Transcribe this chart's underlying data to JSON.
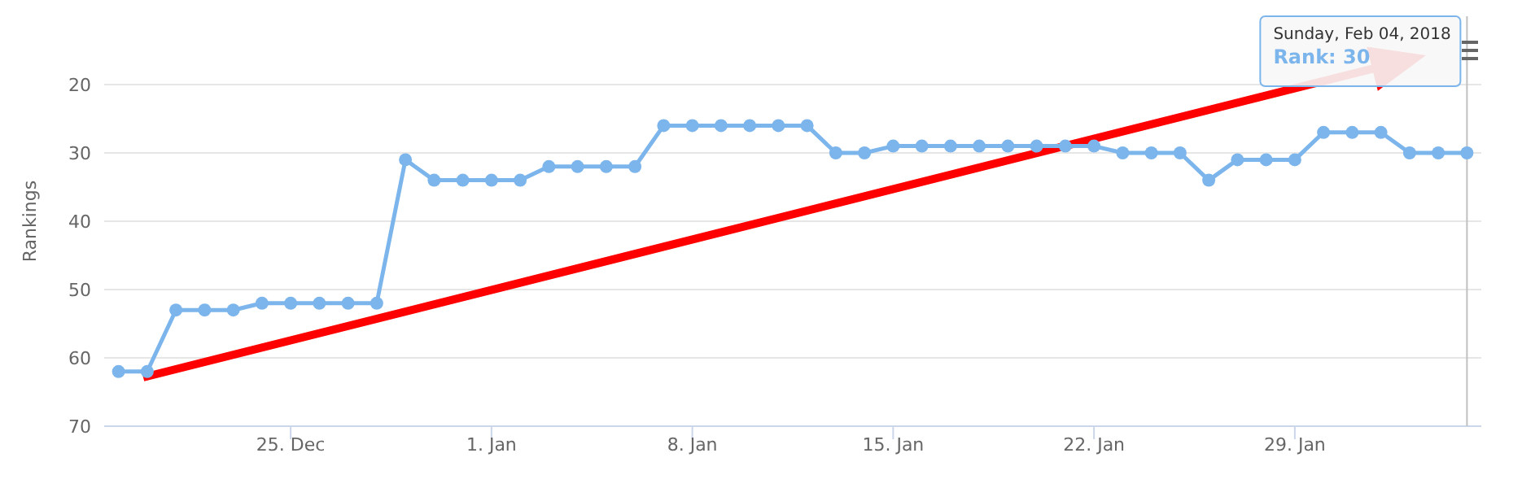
{
  "chart_data": {
    "type": "line",
    "ylabel": "Rankings",
    "x": [
      "2017-12-19",
      "2017-12-20",
      "2017-12-21",
      "2017-12-22",
      "2017-12-23",
      "2017-12-24",
      "2017-12-25",
      "2017-12-26",
      "2017-12-27",
      "2017-12-28",
      "2017-12-29",
      "2017-12-30",
      "2017-12-31",
      "2018-01-01",
      "2018-01-02",
      "2018-01-03",
      "2018-01-04",
      "2018-01-05",
      "2018-01-06",
      "2018-01-07",
      "2018-01-08",
      "2018-01-09",
      "2018-01-10",
      "2018-01-11",
      "2018-01-12",
      "2018-01-13",
      "2018-01-14",
      "2018-01-15",
      "2018-01-16",
      "2018-01-17",
      "2018-01-18",
      "2018-01-19",
      "2018-01-20",
      "2018-01-21",
      "2018-01-22",
      "2018-01-23",
      "2018-01-24",
      "2018-01-25",
      "2018-01-26",
      "2018-01-27",
      "2018-01-28",
      "2018-01-29",
      "2018-01-30",
      "2018-01-31",
      "2018-02-01",
      "2018-02-02",
      "2018-02-03",
      "2018-02-04"
    ],
    "series": [
      {
        "color": "#7cb5ec",
        "values": [
          62,
          62,
          53,
          53,
          53,
          52,
          52,
          52,
          52,
          52,
          31,
          34,
          34,
          34,
          34,
          32,
          32,
          32,
          32,
          26,
          26,
          26,
          26,
          26,
          26,
          30,
          30,
          29,
          29,
          29,
          29,
          29,
          29,
          29,
          29,
          30,
          30,
          30,
          34,
          31,
          31,
          31,
          27,
          27,
          27,
          30,
          30,
          30
        ]
      }
    ],
    "xlim": [
      "2017-12-18T12:00",
      "2018-02-04T12:00"
    ],
    "xticks": [
      {
        "value": "2017-12-25",
        "label": "25. Dec"
      },
      {
        "value": "2018-01-01",
        "label": "1. Jan"
      },
      {
        "value": "2018-01-08",
        "label": "8. Jan"
      },
      {
        "value": "2018-01-15",
        "label": "15. Jan"
      },
      {
        "value": "2018-01-22",
        "label": "22. Jan"
      },
      {
        "value": "2018-01-29",
        "label": "29. Jan"
      }
    ],
    "ylim": [
      70,
      10
    ],
    "yticks": [
      20,
      30,
      40,
      50,
      60,
      70
    ],
    "grid": "y",
    "marker": "circle",
    "line_style": "solid",
    "ref_lines": [
      {
        "axis": "x",
        "value": "2018-02-04",
        "label": null,
        "color": "#c0c0c0"
      }
    ],
    "annotations": [
      "Sunday, Feb 04, 2018",
      "Rank: 30"
    ]
  }
}
